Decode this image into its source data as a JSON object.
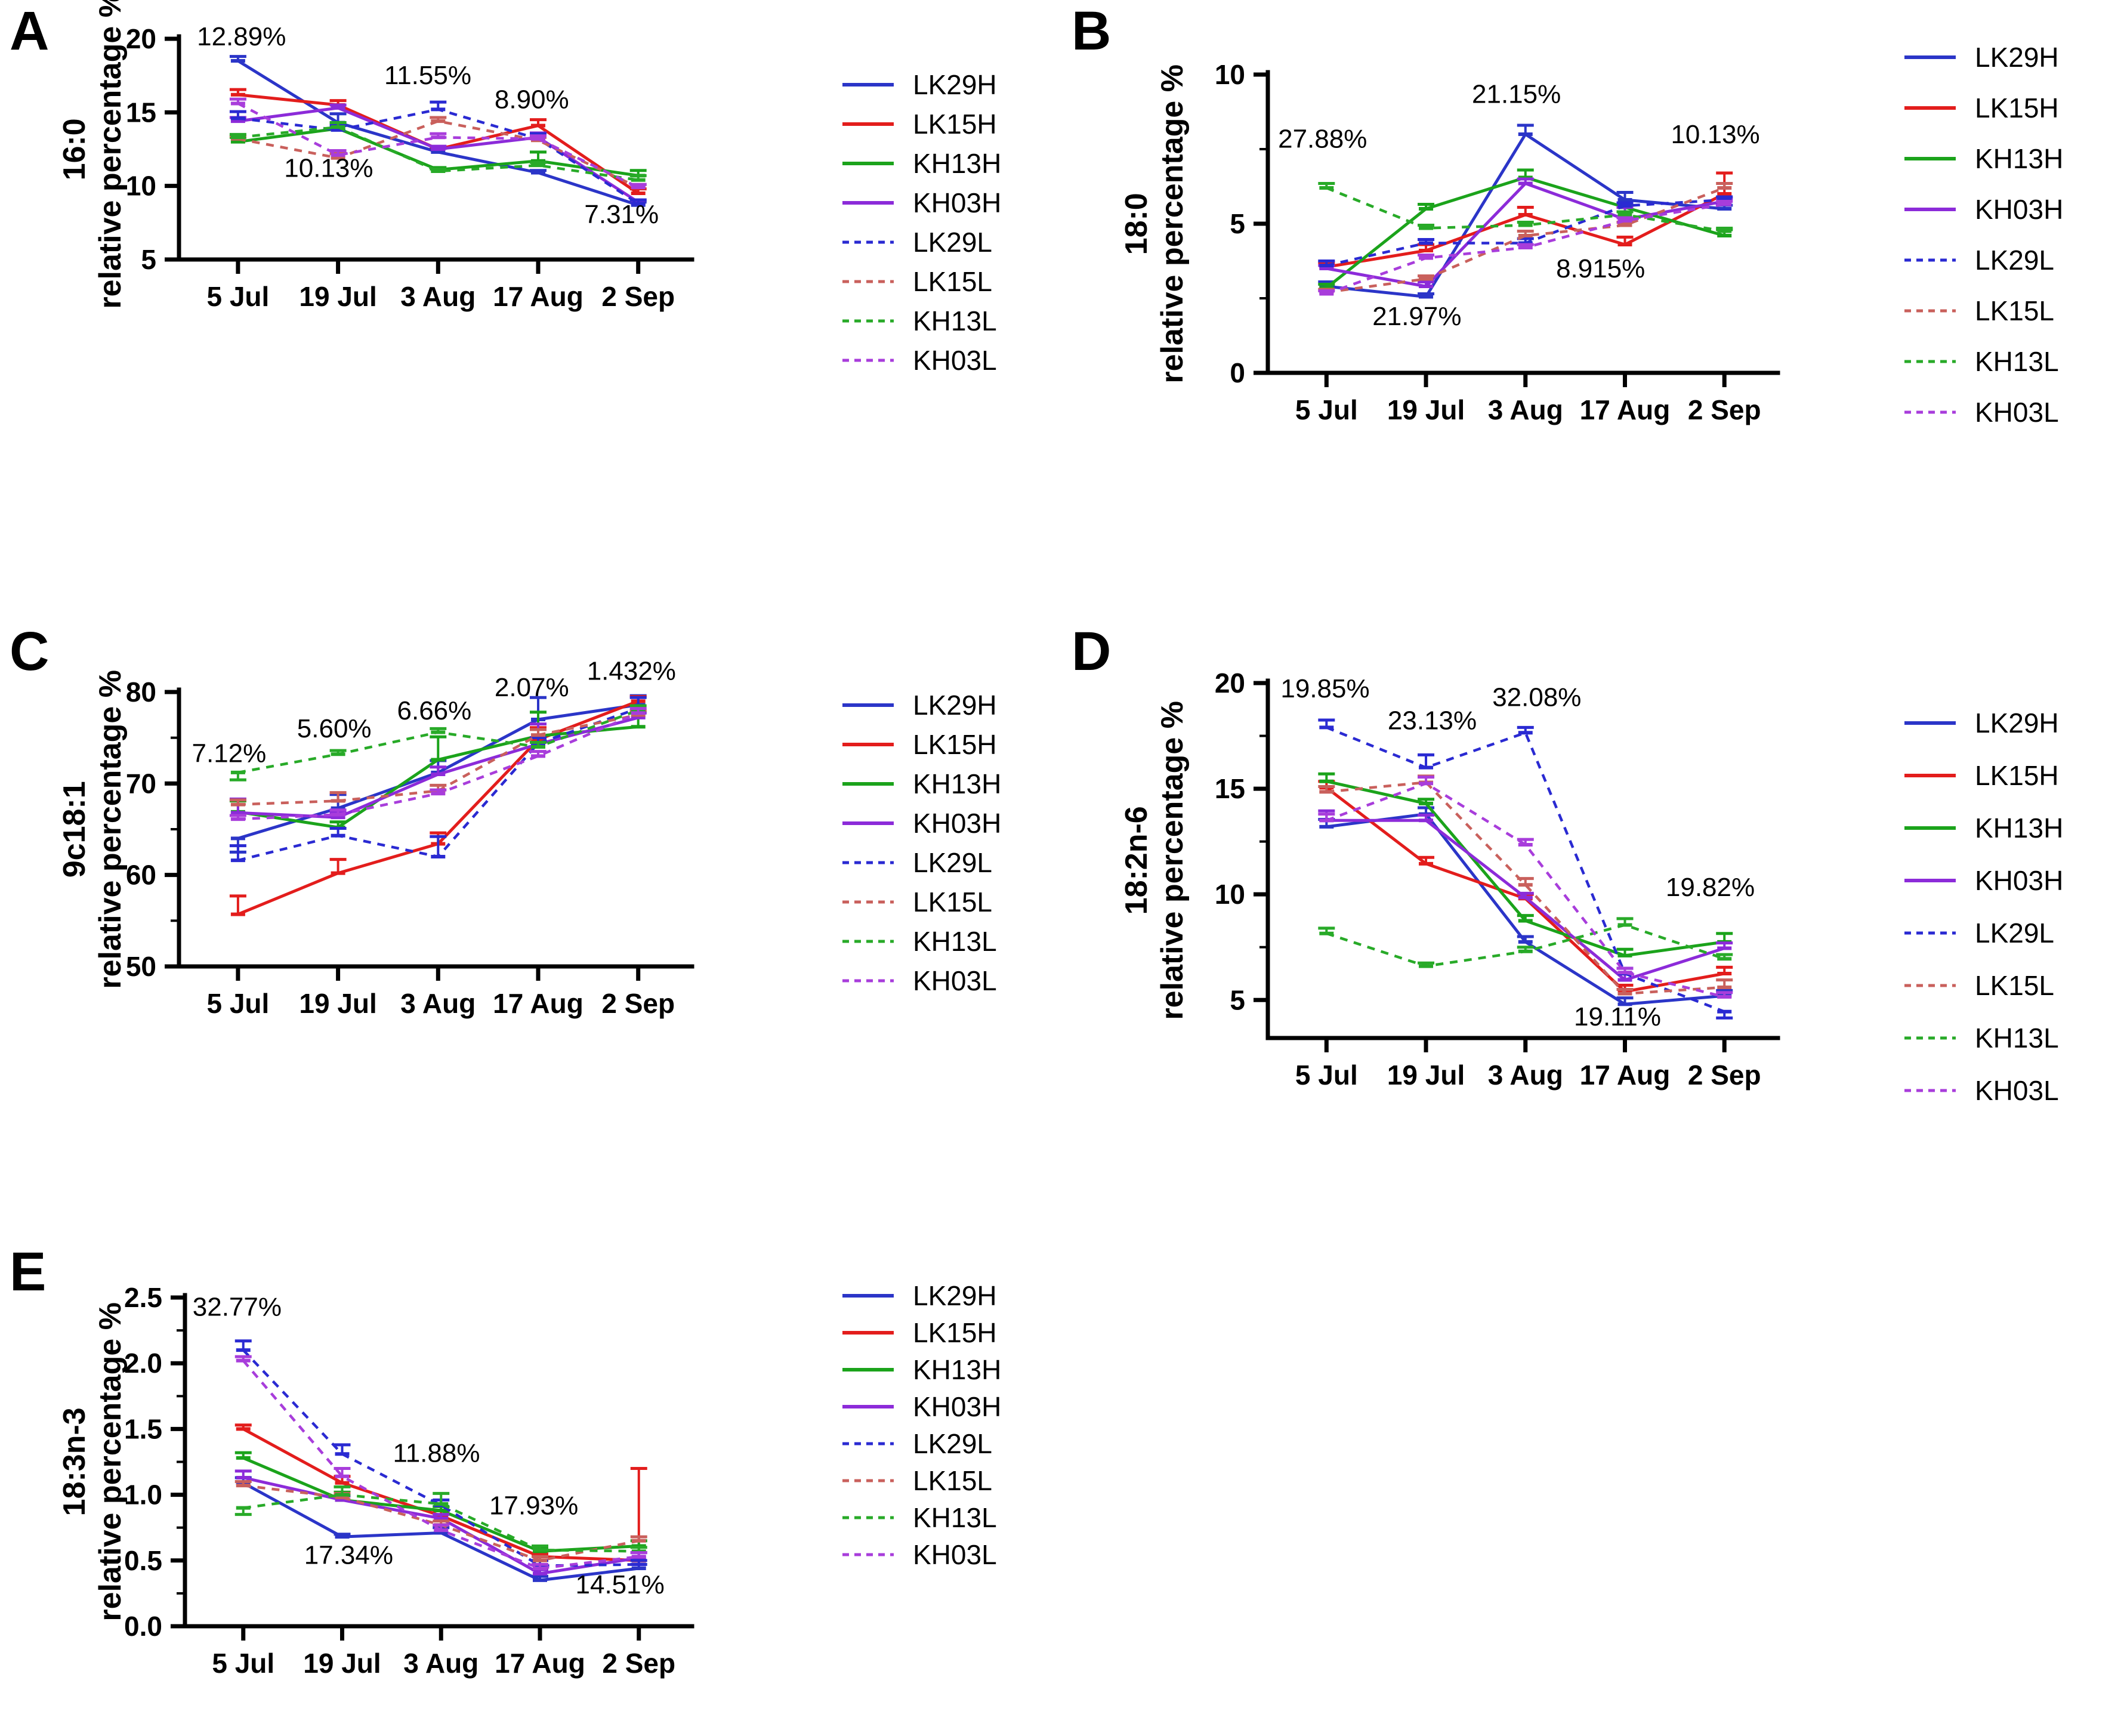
{
  "figure": {
    "panels": [
      "A",
      "B",
      "C",
      "D",
      "E"
    ],
    "x_axis_dates": [
      "5 Jul",
      "19 Jul",
      "3 Aug",
      "17 Aug",
      "2 Sep"
    ]
  },
  "colors": {
    "LK29H": "#2b35c8",
    "LK15H": "#e31d1c",
    "KH13H": "#1ba31b",
    "KH03H": "#8c2bd9",
    "LK29L": "#2a2ad2",
    "LK15L": "#c9605c",
    "KH13L": "#28aa28",
    "KH03L": "#a83ddb",
    "axis": "#000000",
    "annotation": "#111111"
  },
  "chart_data": [
    {
      "panel": "A",
      "type": "line",
      "title": "16:0",
      "ylabel": "relative percentage %",
      "categories": [
        "5 Jul",
        "19 Jul",
        "3 Aug",
        "17 Aug",
        "2 Sep"
      ],
      "ylim": [
        5,
        20
      ],
      "yticks": [
        5,
        10,
        15,
        20
      ],
      "minor_step": null,
      "ytick_decimals": 0,
      "grid": false,
      "legend_position": "right",
      "series": [
        {
          "name": "LK29H",
          "dash": false,
          "values": [
            18.5,
            14.3,
            12.3,
            10.9,
            8.7
          ],
          "err": [
            0.3,
            0.6,
            0.25,
            0.15,
            0.2
          ]
        },
        {
          "name": "LK15H",
          "dash": false,
          "values": [
            16.2,
            15.5,
            12.5,
            14.1,
            9.5
          ],
          "err": [
            0.35,
            0.3,
            0.15,
            0.4,
            0.3
          ]
        },
        {
          "name": "KH13H",
          "dash": false,
          "values": [
            13.0,
            13.9,
            11.1,
            11.7,
            10.7
          ],
          "err": [
            0.3,
            0.4,
            0.15,
            0.6,
            0.35
          ]
        },
        {
          "name": "KH03H",
          "dash": false,
          "values": [
            14.4,
            15.3,
            12.5,
            13.3,
            8.9
          ],
          "err": [
            0.25,
            0.2,
            0.2,
            0.3,
            0.15
          ]
        },
        {
          "name": "LK29L",
          "dash": true,
          "values": [
            14.6,
            13.8,
            15.2,
            13.2,
            8.8
          ],
          "err": [
            0.45,
            0.3,
            0.5,
            0.35,
            0.25
          ]
        },
        {
          "name": "LK15L",
          "dash": true,
          "values": [
            13.2,
            11.9,
            14.4,
            13.1,
            9.9
          ],
          "err": [
            0.2,
            0.3,
            0.25,
            0.2,
            0.2
          ]
        },
        {
          "name": "KH13L",
          "dash": true,
          "values": [
            13.3,
            14.0,
            11.0,
            11.4,
            10.4
          ],
          "err": [
            0.2,
            0.3,
            0.15,
            0.2,
            0.3
          ]
        },
        {
          "name": "KH03L",
          "dash": true,
          "values": [
            15.6,
            12.1,
            13.3,
            13.2,
            9.9
          ],
          "err": [
            0.3,
            0.3,
            0.25,
            0.2,
            0.2
          ]
        }
      ],
      "annotations": [
        {
          "text": "12.89%",
          "fx": 0.035,
          "fy": 0.03
        },
        {
          "text": "11.55%",
          "fx": 0.4,
          "fy": 0.205
        },
        {
          "text": "8.90%",
          "fx": 0.615,
          "fy": 0.315
        },
        {
          "text": "10.13%",
          "fx": 0.205,
          "fy": 0.625
        },
        {
          "text": "7.31%",
          "fx": 0.79,
          "fy": 0.835
        }
      ]
    },
    {
      "panel": "B",
      "type": "line",
      "title": "18:0",
      "ylabel": "relative percentage %",
      "categories": [
        "5 Jul",
        "19 Jul",
        "3 Aug",
        "17 Aug",
        "2 Sep"
      ],
      "ylim": [
        0,
        10
      ],
      "yticks": [
        0,
        5,
        10
      ],
      "minor_step": 2.5,
      "ytick_decimals": 0,
      "grid": false,
      "legend_position": "right",
      "series": [
        {
          "name": "LK29H",
          "dash": false,
          "values": [
            2.9,
            2.55,
            8.0,
            5.8,
            5.5
          ],
          "err": [
            0.15,
            0.1,
            0.3,
            0.25,
            0.12
          ]
        },
        {
          "name": "LK15H",
          "dash": false,
          "values": [
            3.55,
            4.1,
            5.3,
            4.3,
            6.0
          ],
          "err": [
            0.15,
            0.2,
            0.25,
            0.25,
            0.7
          ]
        },
        {
          "name": "KH13H",
          "dash": false,
          "values": [
            2.85,
            5.5,
            6.55,
            5.55,
            4.6
          ],
          "err": [
            0.12,
            0.15,
            0.25,
            0.1,
            0.2
          ]
        },
        {
          "name": "KH03H",
          "dash": false,
          "values": [
            3.5,
            2.9,
            6.35,
            5.15,
            5.75
          ],
          "err": [
            0.1,
            0.15,
            0.15,
            0.4,
            0.1
          ]
        },
        {
          "name": "LK29L",
          "dash": true,
          "values": [
            3.6,
            4.35,
            4.35,
            5.6,
            5.8
          ],
          "err": [
            0.15,
            0.12,
            0.15,
            0.1,
            0.1
          ]
        },
        {
          "name": "LK15L",
          "dash": true,
          "values": [
            2.7,
            3.15,
            4.6,
            4.95,
            6.2
          ],
          "err": [
            0.1,
            0.1,
            0.15,
            0.1,
            0.15
          ]
        },
        {
          "name": "KH13L",
          "dash": true,
          "values": [
            6.2,
            4.85,
            4.95,
            5.3,
            4.75
          ],
          "err": [
            0.15,
            0.1,
            0.1,
            0.1,
            0.1
          ]
        },
        {
          "name": "KH03L",
          "dash": true,
          "values": [
            2.65,
            3.85,
            4.2,
            5.1,
            5.65
          ],
          "err": [
            0.1,
            0.1,
            0.1,
            0.1,
            0.1
          ]
        }
      ],
      "annotations": [
        {
          "text": "27.88%",
          "fx": 0.02,
          "fy": 0.245
        },
        {
          "text": "21.15%",
          "fx": 0.4,
          "fy": 0.095
        },
        {
          "text": "10.13%",
          "fx": 0.79,
          "fy": 0.23
        },
        {
          "text": "8.915%",
          "fx": 0.565,
          "fy": 0.68
        },
        {
          "text": "21.97%",
          "fx": 0.205,
          "fy": 0.84
        }
      ]
    },
    {
      "panel": "C",
      "type": "line",
      "title": "9c18:1",
      "ylabel": "relative percentage %",
      "categories": [
        "5 Jul",
        "19 Jul",
        "3 Aug",
        "17 Aug",
        "2 Sep"
      ],
      "ylim": [
        50,
        80
      ],
      "yticks": [
        50,
        60,
        70,
        80
      ],
      "minor_step": 5,
      "ytick_decimals": 0,
      "grid": false,
      "legend_position": "right",
      "series": [
        {
          "name": "LK29H",
          "dash": false,
          "values": [
            64.0,
            67.3,
            71.2,
            77.0,
            78.6
          ],
          "err": [
            -1.5,
            1.5,
            1.3,
            2.4,
            1.0
          ]
        },
        {
          "name": "LK15H",
          "dash": false,
          "values": [
            55.7,
            60.2,
            63.4,
            74.8,
            79.0
          ],
          "err": [
            2.0,
            1.5,
            1.2,
            1.3,
            0.5
          ]
        },
        {
          "name": "KH13H",
          "dash": false,
          "values": [
            66.9,
            65.2,
            72.6,
            75.2,
            76.2
          ],
          "err": [
            1.2,
            0.6,
            2.5,
            2.6,
            1.6
          ]
        },
        {
          "name": "KH03H",
          "dash": false,
          "values": [
            66.8,
            66.3,
            71.0,
            74.3,
            77.2
          ],
          "err": [
            1.5,
            0.5,
            0.8,
            2.2,
            0.5
          ]
        },
        {
          "name": "LK29L",
          "dash": true,
          "values": [
            61.6,
            64.3,
            62.0,
            74.4,
            78.2
          ],
          "err": [
            1.6,
            0.8,
            2.2,
            0.6,
            1.2
          ]
        },
        {
          "name": "LK15L",
          "dash": true,
          "values": [
            67.7,
            68.1,
            69.2,
            75.3,
            77.5
          ],
          "err": [
            0.5,
            0.9,
            0.6,
            0.6,
            0.5
          ]
        },
        {
          "name": "KH13L",
          "dash": true,
          "values": [
            71.2,
            73.2,
            75.6,
            74.0,
            78.0
          ],
          "err": [
            -0.8,
            0.4,
            0.4,
            0.5,
            0.5
          ]
        },
        {
          "name": "KH03L",
          "dash": true,
          "values": [
            66.1,
            66.6,
            68.9,
            73.0,
            77.7
          ],
          "err": [
            0.4,
            0.5,
            0.4,
            0.5,
            0.5
          ]
        }
      ],
      "annotations": [
        {
          "text": "7.12%",
          "fx": 0.025,
          "fy": 0.255
        },
        {
          "text": "5.60%",
          "fx": 0.23,
          "fy": 0.165
        },
        {
          "text": "6.66%",
          "fx": 0.425,
          "fy": 0.1
        },
        {
          "text": "2.07%",
          "fx": 0.615,
          "fy": 0.015
        },
        {
          "text": "1.432%",
          "fx": 0.795,
          "fy": -0.045
        }
      ]
    },
    {
      "panel": "D",
      "type": "line",
      "title": "18:2n-6",
      "ylabel": "relative percentage %",
      "categories": [
        "5 Jul",
        "19 Jul",
        "3 Aug",
        "17 Aug",
        "2 Sep"
      ],
      "ylim": [
        3.2,
        20
      ],
      "yticks": [
        5,
        10,
        15,
        20
      ],
      "minor_step": 2.5,
      "ytick_decimals": 0,
      "grid": false,
      "legend_position": "right",
      "series": [
        {
          "name": "LK29H",
          "dash": false,
          "values": [
            13.2,
            13.8,
            7.75,
            4.8,
            5.2
          ],
          "err": [
            0.35,
            0.3,
            0.25,
            0.3,
            0.25
          ]
        },
        {
          "name": "LK15H",
          "dash": false,
          "values": [
            15.05,
            11.45,
            9.8,
            5.4,
            6.25
          ],
          "err": [
            0.3,
            0.3,
            0.2,
            0.3,
            0.3
          ]
        },
        {
          "name": "KH13H",
          "dash": false,
          "values": [
            15.35,
            14.3,
            8.75,
            7.1,
            7.75
          ],
          "err": [
            0.35,
            0.2,
            0.25,
            0.3,
            0.4
          ]
        },
        {
          "name": "KH03H",
          "dash": false,
          "values": [
            13.5,
            13.5,
            9.85,
            5.95,
            7.45
          ],
          "err": [
            0.45,
            0.25,
            0.2,
            0.3,
            0.25
          ]
        },
        {
          "name": "LK29L",
          "dash": true,
          "values": [
            17.9,
            16.0,
            17.65,
            6.25,
            4.45
          ],
          "err": [
            0.35,
            0.6,
            0.25,
            0.25,
            -0.3
          ]
        },
        {
          "name": "LK15L",
          "dash": true,
          "values": [
            14.85,
            15.3,
            10.45,
            5.3,
            5.6
          ],
          "err": [
            0.25,
            0.3,
            0.3,
            0.2,
            0.35
          ]
        },
        {
          "name": "KH13L",
          "dash": true,
          "values": [
            8.15,
            6.6,
            7.3,
            8.55,
            6.95
          ],
          "err": [
            0.25,
            0.15,
            0.2,
            0.3,
            0.2
          ]
        },
        {
          "name": "KH03L",
          "dash": true,
          "values": [
            13.5,
            15.25,
            12.35,
            6.3,
            5.15
          ],
          "err": [
            0.3,
            0.3,
            0.25,
            0.2,
            0.2
          ]
        }
      ],
      "annotations": [
        {
          "text": "19.85%",
          "fx": 0.025,
          "fy": 0.04
        },
        {
          "text": "23.13%",
          "fx": 0.235,
          "fy": 0.13
        },
        {
          "text": "32.08%",
          "fx": 0.44,
          "fy": 0.065
        },
        {
          "text": "19.11%",
          "fx": 0.6,
          "fy": 0.965
        },
        {
          "text": "19.82%",
          "fx": 0.78,
          "fy": 0.6
        }
      ]
    },
    {
      "panel": "E",
      "type": "line",
      "title": "18:3n-3",
      "ylabel": "relative percentage %",
      "categories": [
        "5 Jul",
        "19 Jul",
        "3 Aug",
        "17 Aug",
        "2 Sep"
      ],
      "ylim": [
        0,
        2.5
      ],
      "yticks": [
        0,
        0.5,
        1.0,
        1.5,
        2.0,
        2.5
      ],
      "minor_step": 0.25,
      "ytick_decimals": 1,
      "grid": false,
      "legend_position": "right",
      "series": [
        {
          "name": "LK29H",
          "dash": false,
          "values": [
            1.09,
            0.68,
            0.71,
            0.35,
            0.44
          ],
          "err": [
            0.04,
            0.02,
            0.04,
            0.03,
            0.03
          ]
        },
        {
          "name": "LK15H",
          "dash": false,
          "values": [
            1.5,
            1.09,
            0.84,
            0.53,
            0.5
          ],
          "err": [
            0.03,
            0.05,
            0.04,
            0.02,
            0.7
          ]
        },
        {
          "name": "KH13H",
          "dash": false,
          "values": [
            1.28,
            0.96,
            0.88,
            0.57,
            0.61
          ],
          "err": [
            0.04,
            0.06,
            0.03,
            0.03,
            0.04
          ]
        },
        {
          "name": "KH03H",
          "dash": false,
          "values": [
            1.13,
            0.96,
            0.82,
            0.4,
            0.52
          ],
          "err": [
            0.05,
            0.03,
            0.03,
            0.03,
            0.04
          ]
        },
        {
          "name": "LK29L",
          "dash": true,
          "values": [
            2.1,
            1.31,
            0.92,
            0.46,
            0.47
          ],
          "err": [
            0.07,
            0.07,
            0.04,
            0.04,
            0.03
          ]
        },
        {
          "name": "LK15L",
          "dash": true,
          "values": [
            1.07,
            0.98,
            0.77,
            0.5,
            0.65
          ],
          "err": [
            0.03,
            0.03,
            0.03,
            0.03,
            0.03
          ]
        },
        {
          "name": "KH13L",
          "dash": true,
          "values": [
            0.9,
            1.0,
            0.93,
            0.58,
            0.57
          ],
          "err": [
            -0.05,
            0.06,
            0.08,
            0.03,
            0.03
          ]
        },
        {
          "name": "KH03L",
          "dash": true,
          "values": [
            2.02,
            1.14,
            0.73,
            0.44,
            0.53
          ],
          "err": [
            0.03,
            0.06,
            0.04,
            0.03,
            0.03
          ]
        }
      ],
      "annotations": [
        {
          "text": "32.77%",
          "fx": 0.015,
          "fy": 0.055
        },
        {
          "text": "17.34%",
          "fx": 0.235,
          "fy": 0.81
        },
        {
          "text": "11.88%",
          "fx": 0.41,
          "fy": 0.5
        },
        {
          "text": "17.93%",
          "fx": 0.6,
          "fy": 0.66
        },
        {
          "text": "14.51%",
          "fx": 0.77,
          "fy": 0.9
        }
      ]
    }
  ]
}
